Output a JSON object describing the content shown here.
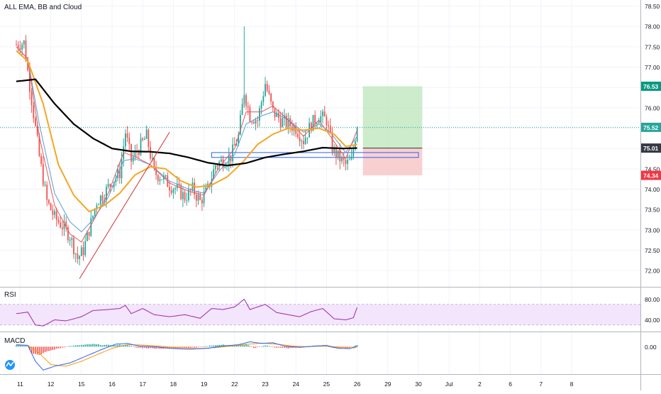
{
  "title": "ALL EMA, BB and Cloud",
  "colors": {
    "up": "#26a69a",
    "down": "#ef5350",
    "ema_black": "#000000",
    "ema_orange": "#f5a623",
    "ema_red": "#e05a5a",
    "ema_blue": "#5b9bd5",
    "rsi": "#9c27b0",
    "rsi_band": "#f3e5fb",
    "macd_line": "#2962ff",
    "signal_line": "#ff9800",
    "tp_zone": "#b7e4b7",
    "sl_zone": "#f8c4c4",
    "trendline": "#d32f2f",
    "box": "#2962ff"
  },
  "chart_data": [
    {
      "type": "candlestick",
      "name": "price",
      "x_ticks": [
        "11",
        "12",
        "15",
        "16",
        "17",
        "18",
        "19",
        "22",
        "23",
        "24",
        "25",
        "26",
        "29",
        "30",
        "Jul",
        "2",
        "6",
        "7",
        "8"
      ],
      "y_ticks": [
        "78.50",
        "78.00",
        "77.50",
        "77.00",
        "76.50",
        "76.00",
        "75.50",
        "75.00",
        "74.50",
        "74.00",
        "73.50",
        "73.00",
        "72.50",
        "72.00"
      ],
      "ylim": [
        71.6,
        78.65
      ],
      "y_tick_values": [
        78.5,
        78.0,
        77.5,
        77.0,
        76.5,
        76.0,
        75.5,
        75.0,
        74.5,
        74.0,
        73.5,
        73.0,
        72.5,
        72.0
      ],
      "x_tick_index": [
        2,
        18,
        34,
        50,
        66,
        82,
        98,
        114,
        130,
        146,
        162,
        178,
        194,
        210,
        226,
        242,
        258,
        274,
        290
      ],
      "key_points": [
        {
          "i": 0,
          "v": 77.55
        },
        {
          "i": 4,
          "v": 77.6
        },
        {
          "i": 8,
          "v": 76.2
        },
        {
          "i": 12,
          "v": 74.8
        },
        {
          "i": 16,
          "v": 73.7
        },
        {
          "i": 20,
          "v": 73.3
        },
        {
          "i": 24,
          "v": 73.1
        },
        {
          "i": 28,
          "v": 72.85
        },
        {
          "i": 32,
          "v": 72.3
        },
        {
          "i": 35,
          "v": 72.5
        },
        {
          "i": 38,
          "v": 73.0
        },
        {
          "i": 42,
          "v": 73.7
        },
        {
          "i": 46,
          "v": 73.9
        },
        {
          "i": 50,
          "v": 74.2
        },
        {
          "i": 54,
          "v": 74.4
        },
        {
          "i": 57,
          "v": 75.4
        },
        {
          "i": 60,
          "v": 74.7
        },
        {
          "i": 64,
          "v": 75.0
        },
        {
          "i": 68,
          "v": 75.3
        },
        {
          "i": 72,
          "v": 74.4
        },
        {
          "i": 76,
          "v": 74.3
        },
        {
          "i": 80,
          "v": 74.1
        },
        {
          "i": 84,
          "v": 74.0
        },
        {
          "i": 88,
          "v": 73.8
        },
        {
          "i": 92,
          "v": 74.0
        },
        {
          "i": 96,
          "v": 73.7
        },
        {
          "i": 100,
          "v": 74.0
        },
        {
          "i": 104,
          "v": 74.6
        },
        {
          "i": 108,
          "v": 74.7
        },
        {
          "i": 112,
          "v": 74.8
        },
        {
          "i": 116,
          "v": 75.3
        },
        {
          "i": 119,
          "v": 76.4
        },
        {
          "i": 122,
          "v": 75.8
        },
        {
          "i": 126,
          "v": 75.7
        },
        {
          "i": 130,
          "v": 76.6
        },
        {
          "i": 134,
          "v": 75.9
        },
        {
          "i": 138,
          "v": 75.7
        },
        {
          "i": 142,
          "v": 75.6
        },
        {
          "i": 146,
          "v": 75.5
        },
        {
          "i": 150,
          "v": 75.2
        },
        {
          "i": 154,
          "v": 75.6
        },
        {
          "i": 158,
          "v": 75.8
        },
        {
          "i": 162,
          "v": 75.7
        },
        {
          "i": 165,
          "v": 75.0
        },
        {
          "i": 168,
          "v": 74.8
        },
        {
          "i": 172,
          "v": 74.6
        },
        {
          "i": 175,
          "v": 74.7
        },
        {
          "i": 178,
          "v": 75.6
        }
      ],
      "ema_black": [
        {
          "i": 0,
          "v": 76.65
        },
        {
          "i": 10,
          "v": 76.7
        },
        {
          "i": 20,
          "v": 76.1
        },
        {
          "i": 30,
          "v": 75.6
        },
        {
          "i": 40,
          "v": 75.25
        },
        {
          "i": 50,
          "v": 75.0
        },
        {
          "i": 60,
          "v": 74.93
        },
        {
          "i": 70,
          "v": 74.92
        },
        {
          "i": 80,
          "v": 74.88
        },
        {
          "i": 90,
          "v": 74.78
        },
        {
          "i": 100,
          "v": 74.65
        },
        {
          "i": 110,
          "v": 74.58
        },
        {
          "i": 120,
          "v": 74.64
        },
        {
          "i": 130,
          "v": 74.78
        },
        {
          "i": 140,
          "v": 74.86
        },
        {
          "i": 150,
          "v": 74.93
        },
        {
          "i": 160,
          "v": 75.02
        },
        {
          "i": 170,
          "v": 75.0
        },
        {
          "i": 178,
          "v": 75.01
        }
      ],
      "ema_orange": [
        {
          "i": 0,
          "v": 77.4
        },
        {
          "i": 6,
          "v": 77.15
        },
        {
          "i": 14,
          "v": 76.1
        },
        {
          "i": 22,
          "v": 74.6
        },
        {
          "i": 30,
          "v": 73.85
        },
        {
          "i": 38,
          "v": 73.45
        },
        {
          "i": 46,
          "v": 73.6
        },
        {
          "i": 54,
          "v": 73.9
        },
        {
          "i": 62,
          "v": 74.35
        },
        {
          "i": 70,
          "v": 74.55
        },
        {
          "i": 78,
          "v": 74.5
        },
        {
          "i": 86,
          "v": 74.2
        },
        {
          "i": 94,
          "v": 74.05
        },
        {
          "i": 102,
          "v": 74.1
        },
        {
          "i": 110,
          "v": 74.3
        },
        {
          "i": 118,
          "v": 74.65
        },
        {
          "i": 126,
          "v": 75.1
        },
        {
          "i": 134,
          "v": 75.35
        },
        {
          "i": 142,
          "v": 75.5
        },
        {
          "i": 150,
          "v": 75.45
        },
        {
          "i": 158,
          "v": 75.5
        },
        {
          "i": 166,
          "v": 75.35
        },
        {
          "i": 172,
          "v": 75.05
        },
        {
          "i": 178,
          "v": 75.1
        }
      ],
      "ema_red": [
        {
          "i": 0,
          "v": 77.5
        },
        {
          "i": 6,
          "v": 77.2
        },
        {
          "i": 12,
          "v": 75.3
        },
        {
          "i": 20,
          "v": 73.6
        },
        {
          "i": 28,
          "v": 72.9
        },
        {
          "i": 34,
          "v": 72.7
        },
        {
          "i": 40,
          "v": 73.2
        },
        {
          "i": 48,
          "v": 73.9
        },
        {
          "i": 56,
          "v": 74.9
        },
        {
          "i": 62,
          "v": 74.8
        },
        {
          "i": 70,
          "v": 74.6
        },
        {
          "i": 80,
          "v": 74.15
        },
        {
          "i": 90,
          "v": 73.95
        },
        {
          "i": 98,
          "v": 73.85
        },
        {
          "i": 106,
          "v": 74.55
        },
        {
          "i": 114,
          "v": 75.0
        },
        {
          "i": 120,
          "v": 75.9
        },
        {
          "i": 128,
          "v": 75.9
        },
        {
          "i": 134,
          "v": 76.05
        },
        {
          "i": 142,
          "v": 75.7
        },
        {
          "i": 150,
          "v": 75.3
        },
        {
          "i": 158,
          "v": 75.7
        },
        {
          "i": 164,
          "v": 75.3
        },
        {
          "i": 172,
          "v": 74.75
        },
        {
          "i": 178,
          "v": 75.45
        }
      ],
      "ema_blue": [
        {
          "i": 0,
          "v": 77.5
        },
        {
          "i": 6,
          "v": 77.2
        },
        {
          "i": 12,
          "v": 75.6
        },
        {
          "i": 20,
          "v": 73.9
        },
        {
          "i": 28,
          "v": 73.2
        },
        {
          "i": 34,
          "v": 72.95
        },
        {
          "i": 40,
          "v": 73.25
        },
        {
          "i": 48,
          "v": 73.8
        },
        {
          "i": 56,
          "v": 74.7
        },
        {
          "i": 62,
          "v": 74.75
        },
        {
          "i": 70,
          "v": 74.6
        },
        {
          "i": 80,
          "v": 74.2
        },
        {
          "i": 90,
          "v": 74.0
        },
        {
          "i": 98,
          "v": 73.9
        },
        {
          "i": 106,
          "v": 74.45
        },
        {
          "i": 114,
          "v": 74.85
        },
        {
          "i": 120,
          "v": 75.6
        },
        {
          "i": 128,
          "v": 75.8
        },
        {
          "i": 134,
          "v": 75.9
        },
        {
          "i": 142,
          "v": 75.7
        },
        {
          "i": 150,
          "v": 75.4
        },
        {
          "i": 158,
          "v": 75.6
        },
        {
          "i": 164,
          "v": 75.4
        },
        {
          "i": 172,
          "v": 74.9
        },
        {
          "i": 178,
          "v": 75.3
        }
      ],
      "trendline": {
        "from": {
          "i": 33,
          "v": 71.8
        },
        "to": {
          "i": 80,
          "v": 75.4
        }
      },
      "zone_box": {
        "i_from": 102,
        "i_to": 210,
        "v_top": 74.9,
        "v_bottom": 74.78
      },
      "take_profit_zone": {
        "i_from": 181,
        "i_to": 212,
        "v_top": 76.53,
        "v_bottom": 75.01
      },
      "stop_loss_zone": {
        "i_from": 181,
        "i_to": 212,
        "v_top": 75.01,
        "v_bottom": 74.34
      },
      "last_price_line": 75.52,
      "price_labels": [
        {
          "text": "76.53",
          "v": 76.53,
          "color": "#089981"
        },
        {
          "text": "75.52",
          "v": 75.52,
          "color": "#26a69a"
        },
        {
          "text": "75.01",
          "v": 75.01,
          "color": "#363a45"
        },
        {
          "text": "74.34",
          "v": 74.34,
          "color": "#f23645"
        }
      ]
    },
    {
      "type": "line",
      "name": "RSI",
      "label": "RSI",
      "y_ticks": [
        "80.00",
        "40.00"
      ],
      "y_tick_values": [
        80,
        40
      ],
      "ylim": [
        20,
        100
      ],
      "band": [
        30,
        70
      ],
      "points": [
        {
          "i": 0,
          "v": 52
        },
        {
          "i": 6,
          "v": 55
        },
        {
          "i": 10,
          "v": 30
        },
        {
          "i": 14,
          "v": 28
        },
        {
          "i": 20,
          "v": 40
        },
        {
          "i": 26,
          "v": 38
        },
        {
          "i": 34,
          "v": 46
        },
        {
          "i": 40,
          "v": 58
        },
        {
          "i": 48,
          "v": 60
        },
        {
          "i": 54,
          "v": 62
        },
        {
          "i": 57,
          "v": 68
        },
        {
          "i": 60,
          "v": 52
        },
        {
          "i": 66,
          "v": 62
        },
        {
          "i": 72,
          "v": 50
        },
        {
          "i": 80,
          "v": 46
        },
        {
          "i": 88,
          "v": 50
        },
        {
          "i": 96,
          "v": 43
        },
        {
          "i": 102,
          "v": 62
        },
        {
          "i": 108,
          "v": 60
        },
        {
          "i": 114,
          "v": 65
        },
        {
          "i": 119,
          "v": 80
        },
        {
          "i": 122,
          "v": 60
        },
        {
          "i": 130,
          "v": 70
        },
        {
          "i": 136,
          "v": 54
        },
        {
          "i": 142,
          "v": 50
        },
        {
          "i": 148,
          "v": 46
        },
        {
          "i": 154,
          "v": 56
        },
        {
          "i": 160,
          "v": 62
        },
        {
          "i": 166,
          "v": 42
        },
        {
          "i": 172,
          "v": 40
        },
        {
          "i": 176,
          "v": 44
        },
        {
          "i": 178,
          "v": 64
        }
      ]
    },
    {
      "type": "bar",
      "name": "MACD",
      "label": "MACD",
      "y_ticks": [
        "0.00"
      ],
      "y_tick_values": [
        0
      ],
      "ylim": [
        -0.8,
        0.4
      ],
      "histogram": [
        {
          "i": 0,
          "v": 0.06
        },
        {
          "i": 6,
          "v": 0.02
        },
        {
          "i": 8,
          "v": -0.2
        },
        {
          "i": 12,
          "v": -0.25
        },
        {
          "i": 16,
          "v": -0.15
        },
        {
          "i": 22,
          "v": -0.05
        },
        {
          "i": 28,
          "v": 0.02
        },
        {
          "i": 34,
          "v": 0.05
        },
        {
          "i": 40,
          "v": 0.08
        },
        {
          "i": 46,
          "v": 0.05
        },
        {
          "i": 52,
          "v": 0.05
        },
        {
          "i": 58,
          "v": 0.06
        },
        {
          "i": 62,
          "v": -0.03
        },
        {
          "i": 70,
          "v": -0.05
        },
        {
          "i": 78,
          "v": -0.06
        },
        {
          "i": 86,
          "v": -0.04
        },
        {
          "i": 94,
          "v": -0.03
        },
        {
          "i": 102,
          "v": 0.04
        },
        {
          "i": 108,
          "v": 0.06
        },
        {
          "i": 114,
          "v": 0.04
        },
        {
          "i": 120,
          "v": 0.08
        },
        {
          "i": 124,
          "v": -0.05
        },
        {
          "i": 130,
          "v": 0.04
        },
        {
          "i": 136,
          "v": -0.03
        },
        {
          "i": 142,
          "v": -0.05
        },
        {
          "i": 150,
          "v": -0.02
        },
        {
          "i": 156,
          "v": 0.03
        },
        {
          "i": 162,
          "v": 0.02
        },
        {
          "i": 166,
          "v": -0.05
        },
        {
          "i": 172,
          "v": -0.04
        },
        {
          "i": 178,
          "v": 0.05
        }
      ],
      "macd_line": [
        {
          "i": 0,
          "v": 0.06
        },
        {
          "i": 6,
          "v": 0.04
        },
        {
          "i": 10,
          "v": -0.45
        },
        {
          "i": 14,
          "v": -0.72
        },
        {
          "i": 20,
          "v": -0.6
        },
        {
          "i": 28,
          "v": -0.5
        },
        {
          "i": 36,
          "v": -0.3
        },
        {
          "i": 44,
          "v": -0.1
        },
        {
          "i": 52,
          "v": 0.08
        },
        {
          "i": 58,
          "v": 0.1
        },
        {
          "i": 64,
          "v": 0.02
        },
        {
          "i": 72,
          "v": 0.0
        },
        {
          "i": 80,
          "v": -0.05
        },
        {
          "i": 90,
          "v": -0.08
        },
        {
          "i": 100,
          "v": -0.05
        },
        {
          "i": 108,
          "v": 0.02
        },
        {
          "i": 116,
          "v": 0.06
        },
        {
          "i": 122,
          "v": 0.15
        },
        {
          "i": 128,
          "v": 0.1
        },
        {
          "i": 134,
          "v": 0.12
        },
        {
          "i": 140,
          "v": 0.02
        },
        {
          "i": 148,
          "v": -0.02
        },
        {
          "i": 156,
          "v": 0.02
        },
        {
          "i": 162,
          "v": 0.04
        },
        {
          "i": 168,
          "v": -0.05
        },
        {
          "i": 174,
          "v": -0.06
        },
        {
          "i": 178,
          "v": 0.02
        }
      ],
      "signal_line": [
        {
          "i": 0,
          "v": 0.05
        },
        {
          "i": 6,
          "v": 0.04
        },
        {
          "i": 12,
          "v": -0.2
        },
        {
          "i": 18,
          "v": -0.55
        },
        {
          "i": 26,
          "v": -0.6
        },
        {
          "i": 34,
          "v": -0.45
        },
        {
          "i": 42,
          "v": -0.25
        },
        {
          "i": 50,
          "v": -0.05
        },
        {
          "i": 58,
          "v": 0.06
        },
        {
          "i": 66,
          "v": 0.05
        },
        {
          "i": 74,
          "v": 0.02
        },
        {
          "i": 84,
          "v": -0.03
        },
        {
          "i": 94,
          "v": -0.06
        },
        {
          "i": 104,
          "v": -0.03
        },
        {
          "i": 112,
          "v": 0.02
        },
        {
          "i": 120,
          "v": 0.07
        },
        {
          "i": 128,
          "v": 0.11
        },
        {
          "i": 136,
          "v": 0.08
        },
        {
          "i": 144,
          "v": 0.02
        },
        {
          "i": 152,
          "v": 0.0
        },
        {
          "i": 160,
          "v": 0.02
        },
        {
          "i": 168,
          "v": -0.01
        },
        {
          "i": 176,
          "v": -0.04
        },
        {
          "i": 178,
          "v": -0.01
        }
      ]
    }
  ]
}
